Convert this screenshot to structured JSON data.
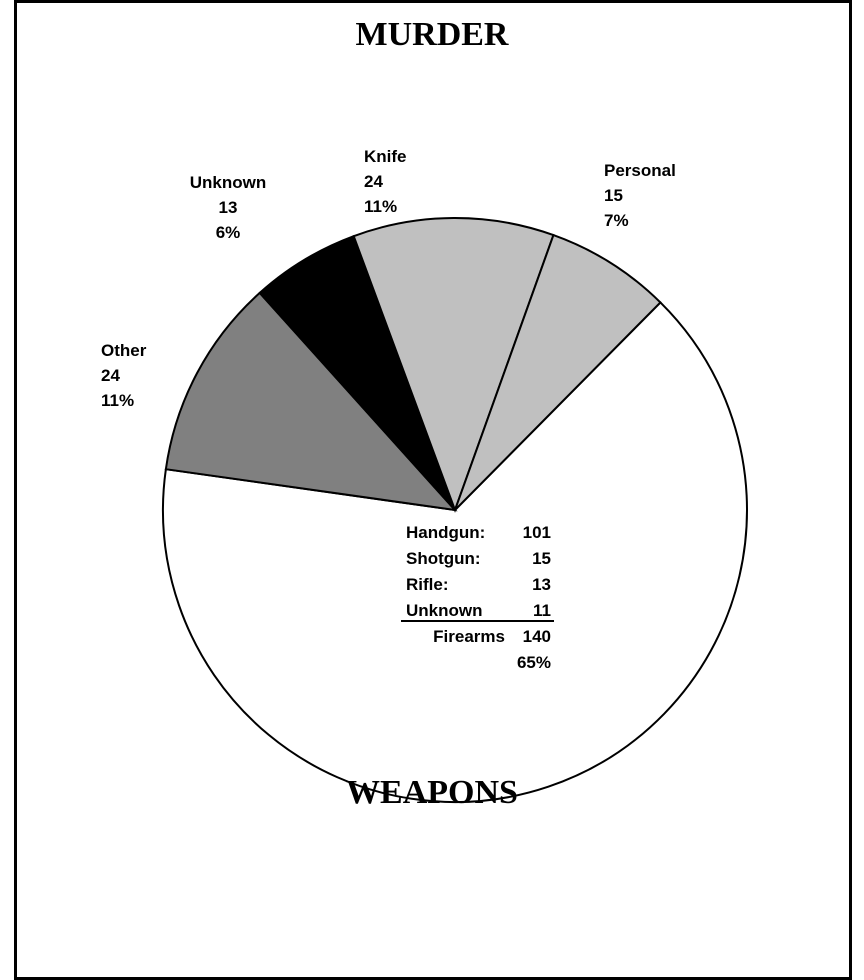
{
  "chart_data": {
    "type": "pie",
    "title": "MURDER",
    "subtitle": "WEAPONS",
    "slices": [
      {
        "label": "Firearms",
        "value": 140,
        "percent": "65%",
        "color": "#ffffff"
      },
      {
        "label": "Other",
        "value": 24,
        "percent": "11%",
        "color": "#808080"
      },
      {
        "label": "Unknown",
        "value": 13,
        "percent": "6%",
        "color": "#000000"
      },
      {
        "label": "Knife",
        "value": 24,
        "percent": "11%",
        "color": "#c0c0c0"
      },
      {
        "label": "Personal",
        "value": 15,
        "percent": "7%",
        "color": "#c0c0c0"
      }
    ],
    "firearms_breakdown": [
      {
        "label": "Handgun:",
        "value": "101"
      },
      {
        "label": "Shotgun:",
        "value": "15"
      },
      {
        "label": "Rifle:",
        "value": "13"
      },
      {
        "label": "Unknown",
        "value": "11"
      }
    ],
    "firearms_total": {
      "label": "Firearms",
      "value": "140",
      "percent": "65%"
    }
  }
}
